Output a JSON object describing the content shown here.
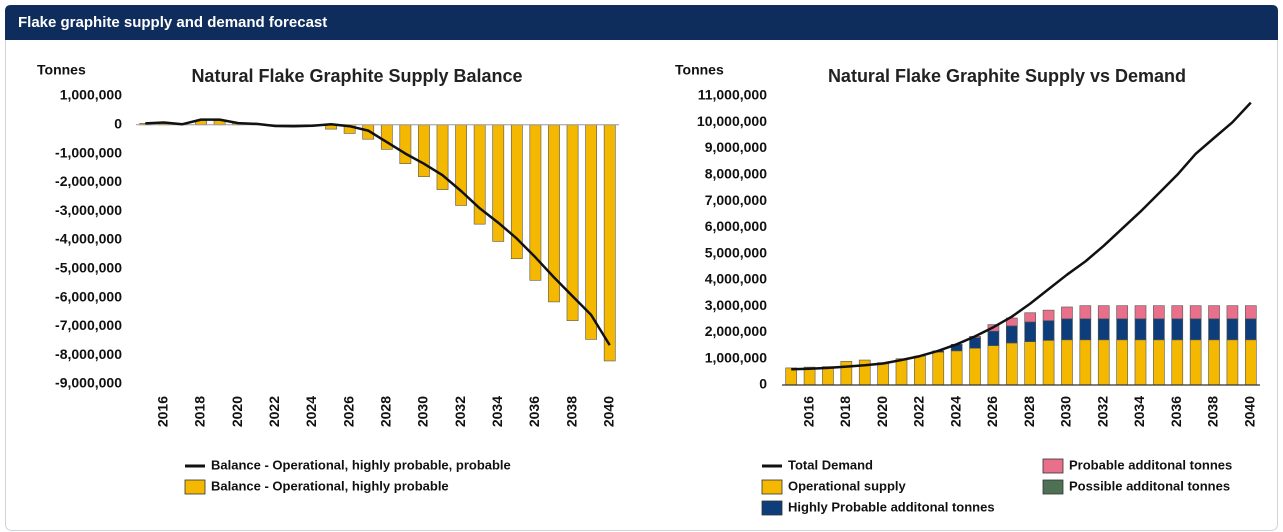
{
  "header": {
    "title": "Flake graphite supply and demand forecast"
  },
  "chart_data": [
    {
      "type": "bar",
      "title": "Natural Flake Graphite Supply Balance",
      "y_label": "Tonnes",
      "categories": [
        null,
        "2016",
        null,
        "2018",
        null,
        "2020",
        null,
        "2022",
        null,
        "2024",
        null,
        "2026",
        null,
        "2028",
        null,
        "2030",
        null,
        "2032",
        null,
        "2034",
        null,
        "2036",
        null,
        "2038",
        null,
        "2040"
      ],
      "ylim": [
        -9000000,
        1000000
      ],
      "yticks": [
        {
          "value": -9000000,
          "label": "-9,000,000"
        },
        {
          "value": -8000000,
          "label": "-8,000,000"
        },
        {
          "value": -7000000,
          "label": "-7,000,000"
        },
        {
          "value": -6000000,
          "label": "-6,000,000"
        },
        {
          "value": -5000000,
          "label": "-5,000,000"
        },
        {
          "value": -4000000,
          "label": "-4,000,000"
        },
        {
          "value": -3000000,
          "label": "-3,000,000"
        },
        {
          "value": -2000000,
          "label": "-2,000,000"
        },
        {
          "value": -1000000,
          "label": "-1,000,000"
        },
        0,
        {
          "value": 1000000,
          "label": "1,000,000"
        }
      ],
      "grid": false,
      "stacked": false,
      "series": [
        {
          "name": "Balance - Operational, highly probable, probable",
          "type": "line",
          "color": "#111111",
          "values": [
            50000,
            80000,
            20000,
            180000,
            180000,
            60000,
            30000,
            -40000,
            -50000,
            -30000,
            20000,
            -50000,
            -200000,
            -600000,
            -1000000,
            -1350000,
            -1750000,
            -2300000,
            -2900000,
            -3400000,
            -3950000,
            -4600000,
            -5300000,
            -5950000,
            -6600000,
            -7650000
          ]
        },
        {
          "name": "Balance - Operational, highly probable",
          "type": "bar",
          "color": "#f5b800",
          "values": [
            50000,
            80000,
            30000,
            150000,
            150000,
            60000,
            30000,
            -30000,
            -50000,
            -20000,
            -150000,
            -300000,
            -500000,
            -850000,
            -1350000,
            -1800000,
            -2250000,
            -2800000,
            -3450000,
            -4050000,
            -4650000,
            -5400000,
            -6150000,
            -6800000,
            -7450000,
            -8200000
          ]
        }
      ]
    },
    {
      "type": "bar",
      "title": "Natural Flake Graphite Supply vs Demand",
      "y_label": "Tonnes",
      "categories": [
        null,
        "2016",
        null,
        "2018",
        null,
        "2020",
        null,
        "2022",
        null,
        "2024",
        null,
        "2026",
        null,
        "2028",
        null,
        "2030",
        null,
        "2032",
        null,
        "2034",
        null,
        "2036",
        null,
        "2038",
        null,
        "2040"
      ],
      "ylim": [
        0,
        11000000
      ],
      "yticks": [
        0,
        {
          "value": 1000000,
          "label": "1,000,000"
        },
        {
          "value": 2000000,
          "label": "2,000,000"
        },
        {
          "value": 3000000,
          "label": "3,000,000"
        },
        {
          "value": 4000000,
          "label": "4,000,000"
        },
        {
          "value": 5000000,
          "label": "5,000,000"
        },
        {
          "value": 6000000,
          "label": "6,000,000"
        },
        {
          "value": 7000000,
          "label": "7,000,000"
        },
        {
          "value": 8000000,
          "label": "8,000,000"
        },
        {
          "value": 9000000,
          "label": "9,000,000"
        },
        {
          "value": 10000000,
          "label": "10,000,000"
        },
        {
          "value": 11000000,
          "label": "11,000,000"
        }
      ],
      "grid": false,
      "stacked": true,
      "series": [
        {
          "name": "Total Demand",
          "type": "line",
          "color": "#111111",
          "values": [
            600000,
            620000,
            650000,
            700000,
            750000,
            820000,
            950000,
            1100000,
            1300000,
            1550000,
            1850000,
            2200000,
            2600000,
            3100000,
            3650000,
            4200000,
            4700000,
            5300000,
            5950000,
            6600000,
            7300000,
            8000000,
            8800000,
            9400000,
            10000000,
            10750000
          ]
        },
        {
          "name": "Operational supply",
          "type": "bar",
          "color": "#f5b800",
          "values": [
            650000,
            680000,
            700000,
            900000,
            950000,
            850000,
            1000000,
            1100000,
            1250000,
            1300000,
            1400000,
            1500000,
            1600000,
            1650000,
            1700000,
            1720000,
            1720000,
            1720000,
            1720000,
            1720000,
            1720000,
            1720000,
            1720000,
            1720000,
            1720000,
            1720000
          ]
        },
        {
          "name": "Highly Probable additonal tonnes",
          "type": "bar",
          "color": "#0d3d7a",
          "values": [
            0,
            0,
            0,
            0,
            0,
            0,
            0,
            0,
            50000,
            250000,
            400000,
            550000,
            650000,
            750000,
            750000,
            800000,
            800000,
            800000,
            800000,
            800000,
            800000,
            800000,
            800000,
            800000,
            800000,
            800000
          ]
        },
        {
          "name": "Probable additonal tonnes",
          "type": "bar",
          "color": "#e8708a",
          "values": [
            0,
            0,
            0,
            0,
            0,
            0,
            0,
            0,
            0,
            0,
            50000,
            250000,
            300000,
            350000,
            400000,
            450000,
            500000,
            500000,
            500000,
            500000,
            500000,
            500000,
            500000,
            500000,
            500000,
            500000
          ]
        },
        {
          "name": "Possible additonal tonnes",
          "type": "bar",
          "color": "#4e7156",
          "values": [
            0,
            0,
            0,
            0,
            0,
            0,
            0,
            0,
            0,
            0,
            0,
            0,
            0,
            0,
            0,
            0,
            0,
            0,
            0,
            0,
            0,
            0,
            0,
            0,
            0,
            0
          ]
        }
      ]
    }
  ]
}
